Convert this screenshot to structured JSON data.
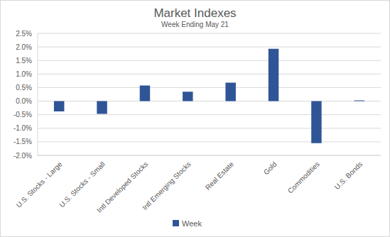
{
  "chart_data": {
    "type": "bar",
    "title": "Market Indexes",
    "subtitle": "Week Ending May 21",
    "categories": [
      "U.S. Stocks - Large",
      "U.S. Stocks - Small",
      "Intl Developed Stocks",
      "Intl Emerging Stocks",
      "Real Estate",
      "Gold",
      "Commodities",
      "U.S. Bonds"
    ],
    "series": [
      {
        "name": "Week",
        "color": "#2f5597",
        "values": [
          -0.38,
          -0.47,
          0.58,
          0.35,
          0.68,
          1.93,
          -1.55,
          0.03
        ]
      }
    ],
    "ylim": [
      -2.0,
      2.5
    ],
    "yticks": [
      {
        "value": -2.0,
        "label": "-2.0%"
      },
      {
        "value": -1.5,
        "label": "-1.5%"
      },
      {
        "value": -1.0,
        "label": "-1.0%"
      },
      {
        "value": -0.5,
        "label": "-0.5%"
      },
      {
        "value": 0,
        "label": "0.0%"
      },
      {
        "value": 0.5,
        "label": "0.5%"
      },
      {
        "value": 1.0,
        "label": "1.0%"
      },
      {
        "value": 1.5,
        "label": "1.5%"
      },
      {
        "value": 2.0,
        "label": "2.0%"
      },
      {
        "value": 2.5,
        "label": "2.5%"
      }
    ],
    "grid": true,
    "legend": "bottom"
  }
}
